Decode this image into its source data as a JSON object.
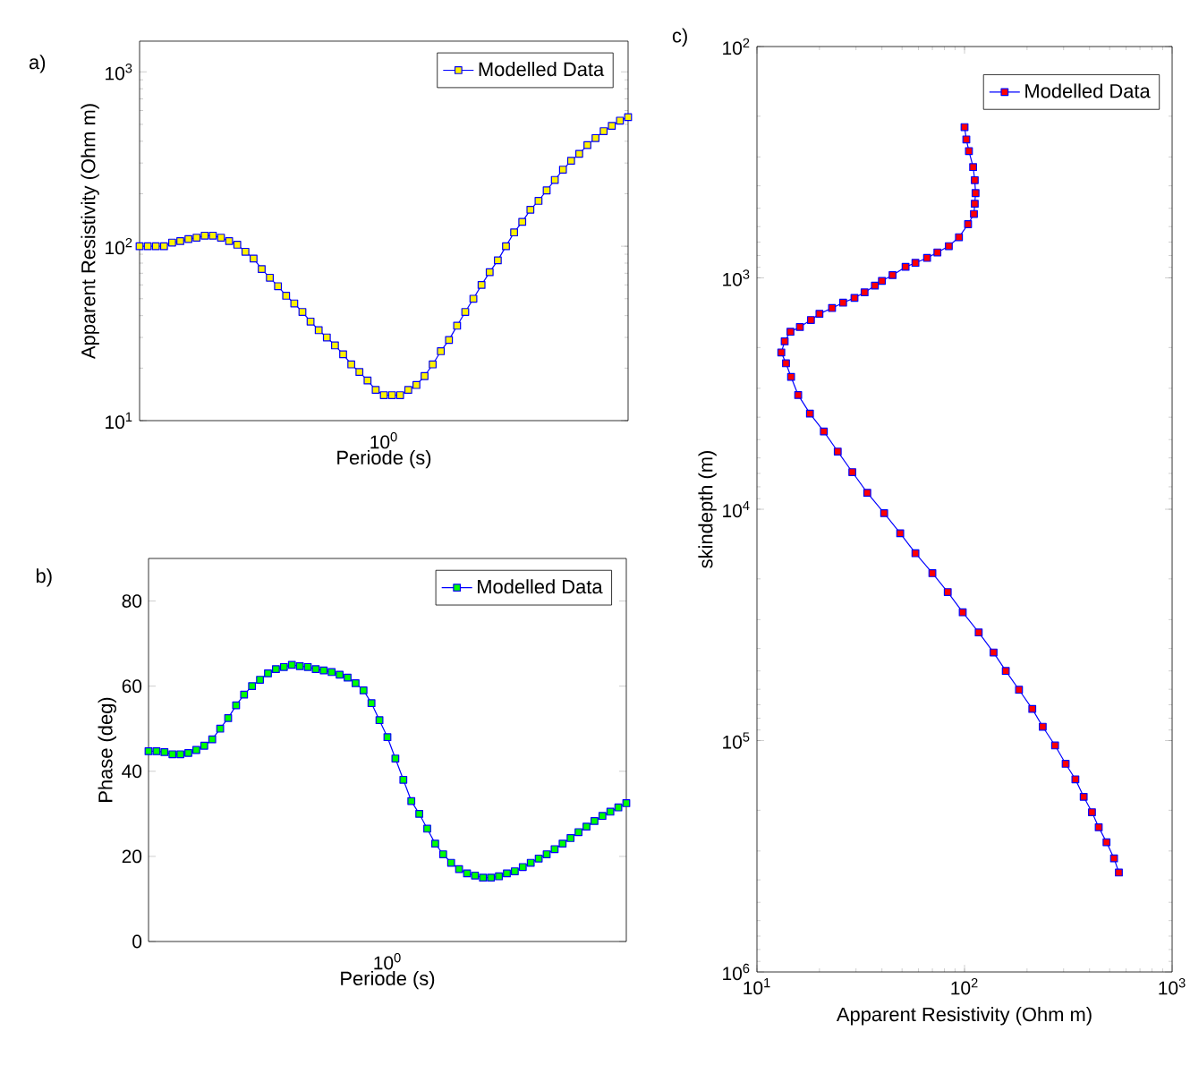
{
  "chart_data": [
    {
      "type": "line",
      "title": "a)",
      "xlabel": "Periode (s)",
      "ylabel": "Apparent Resistivity (Ohm m)",
      "log": "y",
      "marker": "square",
      "legend": "top right",
      "annotations": [
        "10$^{0}$"
      ],
      "ylim": [
        10,
        1500
      ],
      "yticks": [
        {
          "value": 10,
          "label": "10$^{1}$"
        },
        {
          "value": 100,
          "label": "10$^{2}$"
        },
        {
          "value": 1000,
          "label": "10$^{3}$"
        }
      ],
      "categories": [
        null,
        null,
        null,
        null,
        null,
        null,
        null,
        null,
        null,
        null,
        null,
        null,
        null,
        null,
        null,
        null,
        null,
        null,
        null,
        null,
        null,
        null,
        null,
        null,
        null,
        null,
        null,
        null,
        null,
        null,
        null,
        null,
        null,
        null,
        null,
        null,
        null,
        null,
        null,
        null,
        null,
        null,
        null,
        null,
        null,
        null,
        null,
        null,
        null,
        null,
        null,
        null,
        null,
        null,
        null,
        null,
        null,
        null,
        null,
        null,
        null
      ],
      "series": [
        {
          "name": "Modelled Data",
          "color": "#0000ff",
          "values": [
            100,
            100,
            100,
            100,
            105,
            107,
            110,
            112,
            115,
            115,
            112,
            107,
            102,
            93,
            85,
            74,
            66,
            59,
            52,
            47,
            42,
            37,
            33,
            30,
            27,
            24,
            21,
            19,
            17,
            15,
            14,
            14,
            14,
            15,
            16,
            18,
            21,
            25,
            29,
            35,
            42,
            50,
            60,
            71,
            83,
            100,
            120,
            138,
            162,
            182,
            209,
            240,
            275,
            309,
            339,
            380,
            417,
            457,
            490,
            525,
            550
          ]
        }
      ]
    },
    {
      "type": "line",
      "title": "b)",
      "xlabel": "Periode (s)",
      "ylabel": "Phase (deg)",
      "marker": "square",
      "legend": "top right",
      "annotations": [
        "10$^{0}$"
      ],
      "ylim": [
        0,
        90
      ],
      "yticks": [
        {
          "value": 0,
          "label": "0"
        },
        {
          "value": 20,
          "label": "20"
        },
        {
          "value": 40,
          "label": "40"
        },
        {
          "value": 60,
          "label": "60"
        },
        {
          "value": 80,
          "label": "80"
        }
      ],
      "categories": [
        null,
        null,
        null,
        null,
        null,
        null,
        null,
        null,
        null,
        null,
        null,
        null,
        null,
        null,
        null,
        null,
        null,
        null,
        null,
        null,
        null,
        null,
        null,
        null,
        null,
        null,
        null,
        null,
        null,
        null,
        null,
        null,
        null,
        null,
        null,
        null,
        null,
        null,
        null,
        null,
        null,
        null,
        null,
        null,
        null,
        null,
        null,
        null,
        null,
        null,
        null,
        null,
        null,
        null,
        null,
        null,
        null,
        null,
        null,
        null,
        null
      ],
      "series": [
        {
          "name": "Modelled Data",
          "color": "#0000ff",
          "values": [
            44.7,
            44.7,
            44.5,
            44,
            44,
            44.3,
            45,
            46,
            47.5,
            50,
            52.5,
            55.5,
            58,
            60,
            61.5,
            63,
            64,
            64.5,
            65,
            64.7,
            64.5,
            64,
            63.7,
            63.3,
            62.7,
            62,
            60.7,
            59,
            56,
            52,
            48,
            43,
            38,
            33,
            30,
            26.5,
            23,
            20.5,
            18.5,
            17,
            16,
            15.5,
            15,
            15,
            15.3,
            16,
            16.5,
            17.5,
            18.5,
            19.5,
            20.5,
            21.7,
            23,
            24.3,
            25.7,
            27,
            28.3,
            29.5,
            30.5,
            31.5,
            32.5
          ]
        }
      ]
    },
    {
      "type": "line",
      "title": "c)",
      "xlabel": "Apparent Resistivity (Ohm m)",
      "ylabel": "skindepth (m)",
      "log": "xy",
      "marker": "square",
      "legend": "top right",
      "xlim": [
        10,
        1000
      ],
      "xticks": [
        {
          "value": 10,
          "label": "10$^{1}$"
        },
        {
          "value": 100,
          "label": "10$^{2}$"
        },
        {
          "value": 1000,
          "label": "10$^{3}$"
        }
      ],
      "ylim": [
        1000000,
        100
      ],
      "yticks": [
        {
          "value": 100,
          "label": "10$^{2}$"
        },
        {
          "value": 1000,
          "label": "10$^{3}$"
        },
        {
          "value": 10000,
          "label": "10$^{4}$"
        },
        {
          "value": 100000,
          "label": "10$^{5}$"
        },
        {
          "value": 1000000,
          "label": "10$^{6}$"
        }
      ],
      "series": [
        {
          "name": "Modelled Data",
          "color": "#0000ff",
          "x": [
            100,
            102,
            105,
            110,
            112,
            113,
            112,
            111,
            104,
            94,
            84,
            74,
            66,
            58,
            52,
            45,
            40,
            37,
            33,
            29.5,
            26,
            23,
            20,
            18.2,
            16.1,
            14.5,
            13.6,
            13.1,
            13.8,
            14.6,
            15.8,
            18,
            21,
            24.5,
            28.8,
            34,
            41,
            49,
            58,
            70,
            83,
            98,
            117,
            138,
            158,
            183,
            212,
            238,
            273,
            307,
            342,
            375,
            411,
            443,
            483,
            525,
            554
          ],
          "values": [
            223,
            252,
            283,
            332,
            378,
            430,
            478,
            529,
            586,
            667,
            729,
            776,
            820,
            861,
            896,
            973,
            1030,
            1080,
            1155,
            1220,
            1280,
            1350,
            1430,
            1520,
            1630,
            1710,
            1880,
            2100,
            2340,
            2680,
            3210,
            3860,
            4610,
            5630,
            6910,
            8490,
            10400,
            12700,
            15500,
            18900,
            22800,
            27900,
            34100,
            41600,
            50000,
            60300,
            73000,
            87100,
            105000,
            126000,
            147000,
            175000,
            204000,
            237000,
            275000,
            323000,
            372000
          ]
        }
      ]
    }
  ]
}
